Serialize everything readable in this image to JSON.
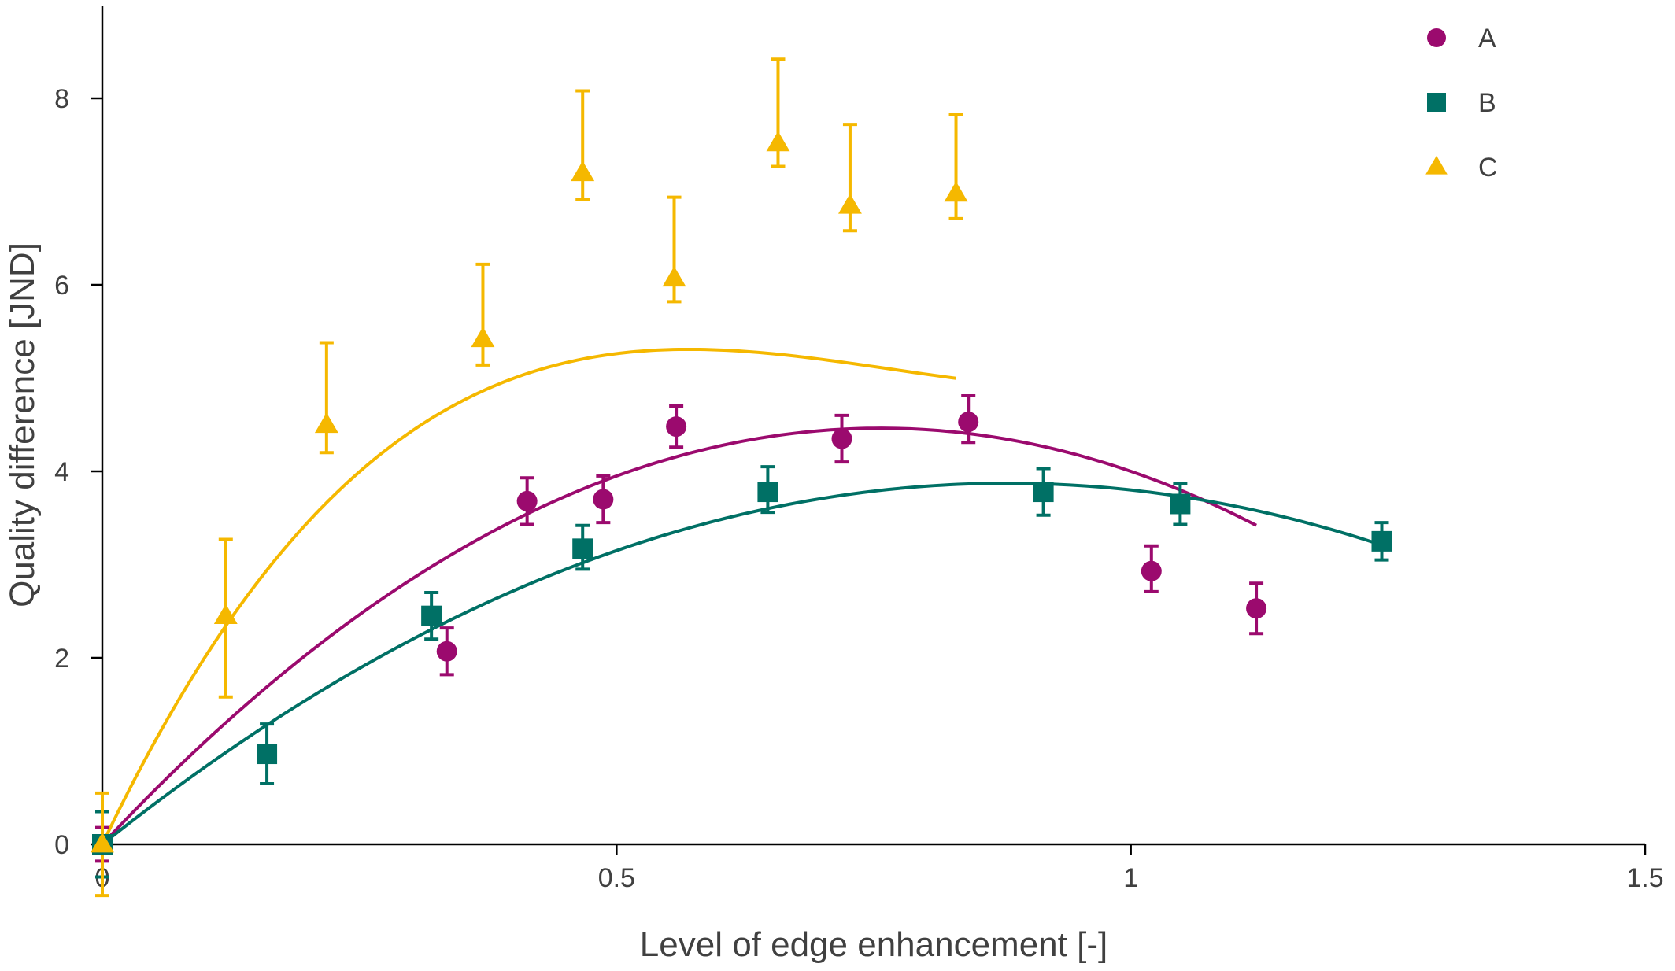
{
  "chart_data": {
    "type": "scatter",
    "xlabel": "Level of edge enhancement [-]",
    "ylabel": "Quality difference [JND]",
    "xlim": [
      0,
      1.5
    ],
    "ylim": [
      0,
      8.8
    ],
    "xticks": [
      0,
      0.5,
      1,
      1.5
    ],
    "xtick_labels": [
      "0",
      "0.5",
      "1",
      "1.5"
    ],
    "yticks": [
      0,
      2,
      4,
      6,
      8
    ],
    "ytick_labels": [
      "0",
      "2",
      "4",
      "6",
      "8"
    ],
    "grid": false,
    "legend_position": "top-right",
    "series": [
      {
        "name": "A",
        "marker": "circle",
        "color": "#9b0a6e",
        "x": [
          0,
          0.335,
          0.413,
          0.487,
          0.558,
          0.719,
          0.842,
          1.02,
          1.122
        ],
        "y": [
          0,
          2.07,
          3.68,
          3.7,
          4.48,
          4.35,
          4.53,
          2.93,
          2.53
        ],
        "error_up": [
          0.18,
          0.25,
          0.25,
          0.25,
          0.22,
          0.25,
          0.28,
          0.27,
          0.27
        ],
        "error_down": [
          0.18,
          0.25,
          0.25,
          0.25,
          0.22,
          0.25,
          0.22,
          0.22,
          0.27
        ],
        "fit": {
          "x_end": 1.122,
          "coeffs": [
            0,
            11.8,
            -7.8
          ]
        }
      },
      {
        "name": "B",
        "marker": "square",
        "color": "#007065",
        "x": [
          0,
          0.16,
          0.32,
          0.467,
          0.647,
          0.915,
          1.048,
          1.244
        ],
        "y": [
          0,
          0.97,
          2.45,
          3.17,
          3.78,
          3.78,
          3.65,
          3.25
        ],
        "error_up": [
          0.35,
          0.32,
          0.25,
          0.25,
          0.27,
          0.25,
          0.22,
          0.2
        ],
        "error_down": [
          0.35,
          0.32,
          0.25,
          0.22,
          0.22,
          0.25,
          0.22,
          0.2
        ],
        "fit": {
          "x_end": 1.244,
          "coeffs": [
            0,
            8.8,
            -5.0
          ]
        }
      },
      {
        "name": "C",
        "marker": "triangle",
        "color": "#f5b800",
        "x": [
          0,
          0.12,
          0.218,
          0.37,
          0.467,
          0.556,
          0.657,
          0.727,
          0.83
        ],
        "y": [
          0,
          2.45,
          4.5,
          5.42,
          7.2,
          6.07,
          7.52,
          6.85,
          6.98
        ],
        "error_up": [
          0.55,
          0.82,
          0.88,
          0.8,
          0.88,
          0.87,
          0.9,
          0.87,
          0.85
        ],
        "error_down": [
          0.55,
          0.87,
          0.3,
          0.28,
          0.28,
          0.25,
          0.25,
          0.27,
          0.27
        ],
        "fit": {
          "x_end": 0.83,
          "coeffs": [
            0,
            23.2,
            -32.4,
            14.1
          ]
        }
      }
    ]
  }
}
